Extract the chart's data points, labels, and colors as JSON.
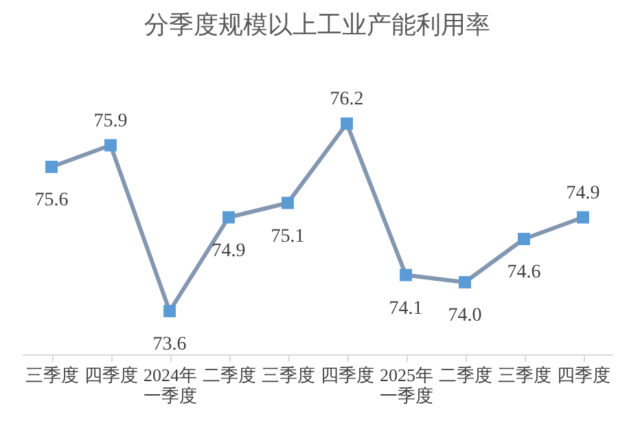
{
  "chart_data": {
    "type": "line",
    "title": "分季度规模以上工业产能利用率",
    "categories": [
      "三季度",
      "四季度",
      "2024年一季度",
      "二季度",
      "三季度",
      "四季度",
      "2025年一季度",
      "二季度",
      "三季度",
      "四季度"
    ],
    "series": [
      {
        "color": "#8497b0",
        "values": [
          75.6,
          75.9,
          73.6,
          74.9,
          75.1,
          76.2,
          74.1,
          74.0,
          74.6,
          74.9
        ],
        "value_labels": [
          "75.6",
          "75.9",
          "73.6",
          "74.9",
          "75.1",
          "76.2",
          "74.1",
          "74.0",
          "74.6",
          "74.9"
        ]
      }
    ],
    "marker": "square",
    "grid": false
  }
}
